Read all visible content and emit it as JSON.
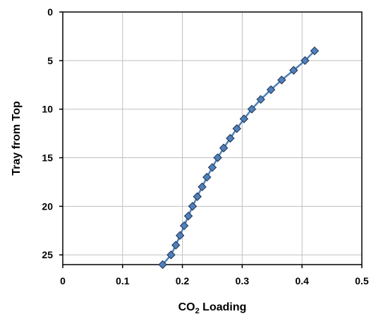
{
  "chart_data": {
    "type": "scatter",
    "xlabel_main": "CO",
    "xlabel_sub": "2",
    "xlabel_tail": " Loading",
    "ylabel": "Tray from Top",
    "xlim": [
      0,
      0.5
    ],
    "ylim": [
      0,
      26
    ],
    "y_inverted": true,
    "x_ticks": [
      "0",
      "0.1",
      "0.2",
      "0.3",
      "0.4",
      "0.5"
    ],
    "y_ticks": [
      "0",
      "5",
      "10",
      "15",
      "20",
      "25"
    ],
    "grid": true,
    "legend": "none",
    "series": [
      {
        "color": "#4f81bd",
        "line_color": "#4f81bd",
        "marker": "diamond",
        "points": [
          {
            "x": 0.421,
            "y": 4
          },
          {
            "x": 0.405,
            "y": 5
          },
          {
            "x": 0.386,
            "y": 6
          },
          {
            "x": 0.366,
            "y": 7
          },
          {
            "x": 0.348,
            "y": 8
          },
          {
            "x": 0.331,
            "y": 9
          },
          {
            "x": 0.316,
            "y": 10
          },
          {
            "x": 0.303,
            "y": 11
          },
          {
            "x": 0.291,
            "y": 12
          },
          {
            "x": 0.28,
            "y": 13
          },
          {
            "x": 0.269,
            "y": 14
          },
          {
            "x": 0.259,
            "y": 15
          },
          {
            "x": 0.25,
            "y": 16
          },
          {
            "x": 0.241,
            "y": 17
          },
          {
            "x": 0.233,
            "y": 18
          },
          {
            "x": 0.225,
            "y": 19
          },
          {
            "x": 0.217,
            "y": 20
          },
          {
            "x": 0.21,
            "y": 21
          },
          {
            "x": 0.203,
            "y": 22
          },
          {
            "x": 0.196,
            "y": 23
          },
          {
            "x": 0.189,
            "y": 24
          },
          {
            "x": 0.181,
            "y": 25
          },
          {
            "x": 0.167,
            "y": 26
          }
        ]
      }
    ]
  }
}
